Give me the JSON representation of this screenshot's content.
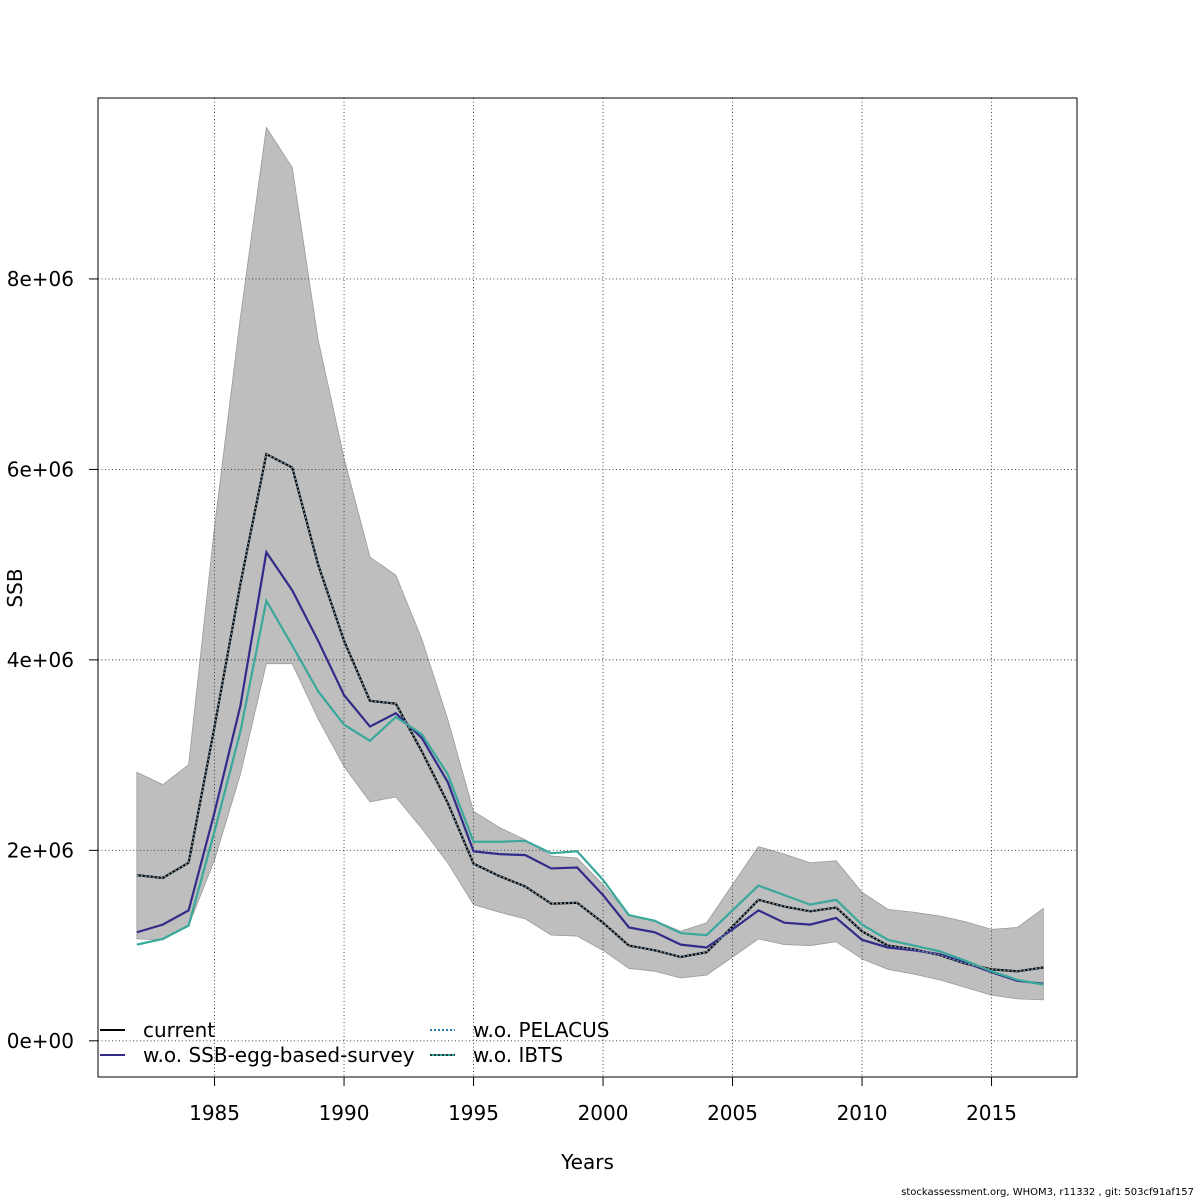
{
  "chart_data": {
    "type": "line",
    "xlabel": "Years",
    "ylabel": "SSB",
    "xlim": [
      1980.5,
      2018.3
    ],
    "ylim": [
      -380000,
      9900000
    ],
    "x_ticks": [
      1985,
      1990,
      1995,
      2000,
      2005,
      2010,
      2015
    ],
    "y_ticks": [
      0,
      2000000,
      4000000,
      6000000,
      8000000
    ],
    "y_tick_labels": [
      "0e+00",
      "2e+06",
      "4e+06",
      "6e+06",
      "8e+06"
    ],
    "grid": true,
    "legend_position": "bottom-left",
    "x": [
      1982,
      1983,
      1984,
      1985,
      1986,
      1987,
      1988,
      1989,
      1990,
      1991,
      1992,
      1993,
      1994,
      1995,
      1996,
      1997,
      1998,
      1999,
      2000,
      2001,
      2002,
      2003,
      2004,
      2005,
      2006,
      2007,
      2008,
      2009,
      2010,
      2011,
      2012,
      2013,
      2014,
      2015,
      2016,
      2017
    ],
    "confidence_band": {
      "color": "#bebebe",
      "upper": [
        2820000,
        2690000,
        2900000,
        5400000,
        7600000,
        9590000,
        9170000,
        7360000,
        6120000,
        5080000,
        4890000,
        4220000,
        3380000,
        2410000,
        2240000,
        2110000,
        1940000,
        1920000,
        1640000,
        1320000,
        1260000,
        1150000,
        1240000,
        1640000,
        2040000,
        1960000,
        1870000,
        1890000,
        1560000,
        1380000,
        1350000,
        1310000,
        1250000,
        1170000,
        1190000,
        1390000
      ],
      "lower": [
        1070000,
        1060000,
        1210000,
        1900000,
        2800000,
        3960000,
        3960000,
        3380000,
        2880000,
        2510000,
        2560000,
        2230000,
        1870000,
        1430000,
        1350000,
        1280000,
        1110000,
        1100000,
        950000,
        760000,
        730000,
        660000,
        690000,
        880000,
        1070000,
        1010000,
        1000000,
        1040000,
        860000,
        750000,
        700000,
        640000,
        560000,
        480000,
        440000,
        430000
      ]
    },
    "series": [
      {
        "name": "current",
        "color": "#000000",
        "style": "solid",
        "values": [
          1740000,
          1710000,
          1870000,
          3300000,
          4800000,
          6160000,
          6020000,
          5000000,
          4200000,
          3570000,
          3540000,
          3040000,
          2500000,
          1860000,
          1730000,
          1620000,
          1440000,
          1450000,
          1240000,
          1000000,
          950000,
          880000,
          930000,
          1200000,
          1480000,
          1410000,
          1360000,
          1400000,
          1150000,
          1000000,
          960000,
          900000,
          810000,
          750000,
          730000,
          770000
        ]
      },
      {
        "name": "w.o. SSB-egg-based-survey",
        "color": "#322b89",
        "style": "solid",
        "values": [
          1140000,
          1220000,
          1370000,
          2400000,
          3520000,
          5130000,
          4730000,
          4200000,
          3630000,
          3300000,
          3440000,
          3180000,
          2720000,
          1990000,
          1960000,
          1950000,
          1810000,
          1820000,
          1530000,
          1190000,
          1140000,
          1010000,
          980000,
          1170000,
          1370000,
          1240000,
          1220000,
          1290000,
          1060000,
          980000,
          950000,
          910000,
          820000,
          720000,
          630000,
          600000
        ]
      },
      {
        "name": "w.o. PELACUS",
        "color": "#2a7fb8",
        "style": "dotted",
        "values": [
          1740000,
          1710000,
          1870000,
          3300000,
          4800000,
          6160000,
          6020000,
          5000000,
          4200000,
          3570000,
          3540000,
          3040000,
          2500000,
          1860000,
          1730000,
          1620000,
          1440000,
          1450000,
          1240000,
          1000000,
          950000,
          880000,
          930000,
          1200000,
          1480000,
          1410000,
          1360000,
          1400000,
          1150000,
          1000000,
          960000,
          900000,
          810000,
          750000,
          730000,
          770000
        ]
      },
      {
        "name": "w.o. IBTS",
        "color": "#3aa89a",
        "style": "solid",
        "values": [
          1010000,
          1070000,
          1210000,
          2200000,
          3250000,
          4620000,
          4150000,
          3670000,
          3320000,
          3150000,
          3400000,
          3220000,
          2800000,
          2090000,
          2090000,
          2100000,
          1970000,
          1990000,
          1690000,
          1320000,
          1260000,
          1130000,
          1110000,
          1370000,
          1630000,
          1530000,
          1430000,
          1480000,
          1220000,
          1060000,
          1000000,
          940000,
          840000,
          730000,
          640000,
          590000
        ]
      }
    ]
  },
  "footer": "stockassessment.org, WHOM3, r11332 , git: 503cf91af157"
}
